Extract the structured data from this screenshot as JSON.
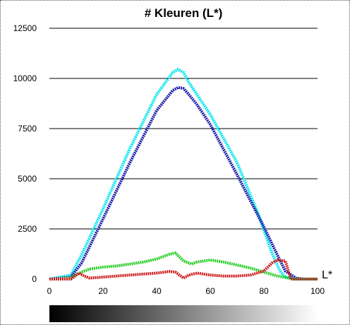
{
  "chart_data": {
    "type": "line",
    "title": "# Kleuren (L*)",
    "xlabel": "L*",
    "ylabel": "",
    "xlim": [
      0,
      100
    ],
    "ylim": [
      0,
      12500
    ],
    "x_ticks": [
      "0",
      "20",
      "40",
      "60",
      "80",
      "100"
    ],
    "y_ticks": [
      "0",
      "2500",
      "5000",
      "7500",
      "10000",
      "12500"
    ],
    "grid": "horizontal",
    "gradient_bar": {
      "from": "#000000",
      "to": "#ffffff"
    },
    "series": [
      {
        "color": "#00e5ee",
        "x": [
          0,
          8,
          12,
          20,
          30,
          40,
          46,
          48,
          50,
          52,
          55,
          60,
          70,
          78,
          83,
          86,
          88,
          92,
          100
        ],
        "y": [
          0,
          200,
          1200,
          3500,
          6500,
          9200,
          10300,
          10450,
          10300,
          9800,
          9200,
          8200,
          5800,
          3200,
          1300,
          400,
          100,
          0,
          0
        ]
      },
      {
        "color": "#1a1aa8",
        "x": [
          0,
          8,
          12,
          20,
          30,
          40,
          46,
          48,
          50,
          52,
          55,
          60,
          70,
          80,
          85,
          88,
          92,
          95,
          100
        ],
        "y": [
          0,
          100,
          800,
          3000,
          5800,
          8400,
          9400,
          9550,
          9500,
          9200,
          8700,
          7700,
          5200,
          2600,
          1200,
          400,
          50,
          0,
          0
        ]
      },
      {
        "color": "#22cc22",
        "x": [
          0,
          8,
          12,
          15,
          20,
          25,
          30,
          35,
          40,
          45,
          47,
          50,
          53,
          55,
          60,
          65,
          70,
          75,
          80,
          85,
          90,
          92,
          100
        ],
        "y": [
          0,
          50,
          350,
          500,
          600,
          650,
          750,
          850,
          1000,
          1250,
          1300,
          900,
          750,
          850,
          950,
          850,
          700,
          550,
          350,
          150,
          30,
          0,
          0
        ]
      },
      {
        "color": "#cc1a1a",
        "x": [
          0,
          8,
          11,
          13,
          15,
          20,
          25,
          30,
          35,
          40,
          45,
          47,
          50,
          52,
          55,
          60,
          65,
          70,
          75,
          80,
          83,
          85,
          88,
          90,
          100
        ],
        "y": [
          0,
          0,
          300,
          150,
          50,
          100,
          150,
          200,
          250,
          300,
          380,
          350,
          50,
          200,
          300,
          200,
          150,
          150,
          200,
          400,
          800,
          950,
          900,
          0,
          0
        ]
      }
    ]
  }
}
